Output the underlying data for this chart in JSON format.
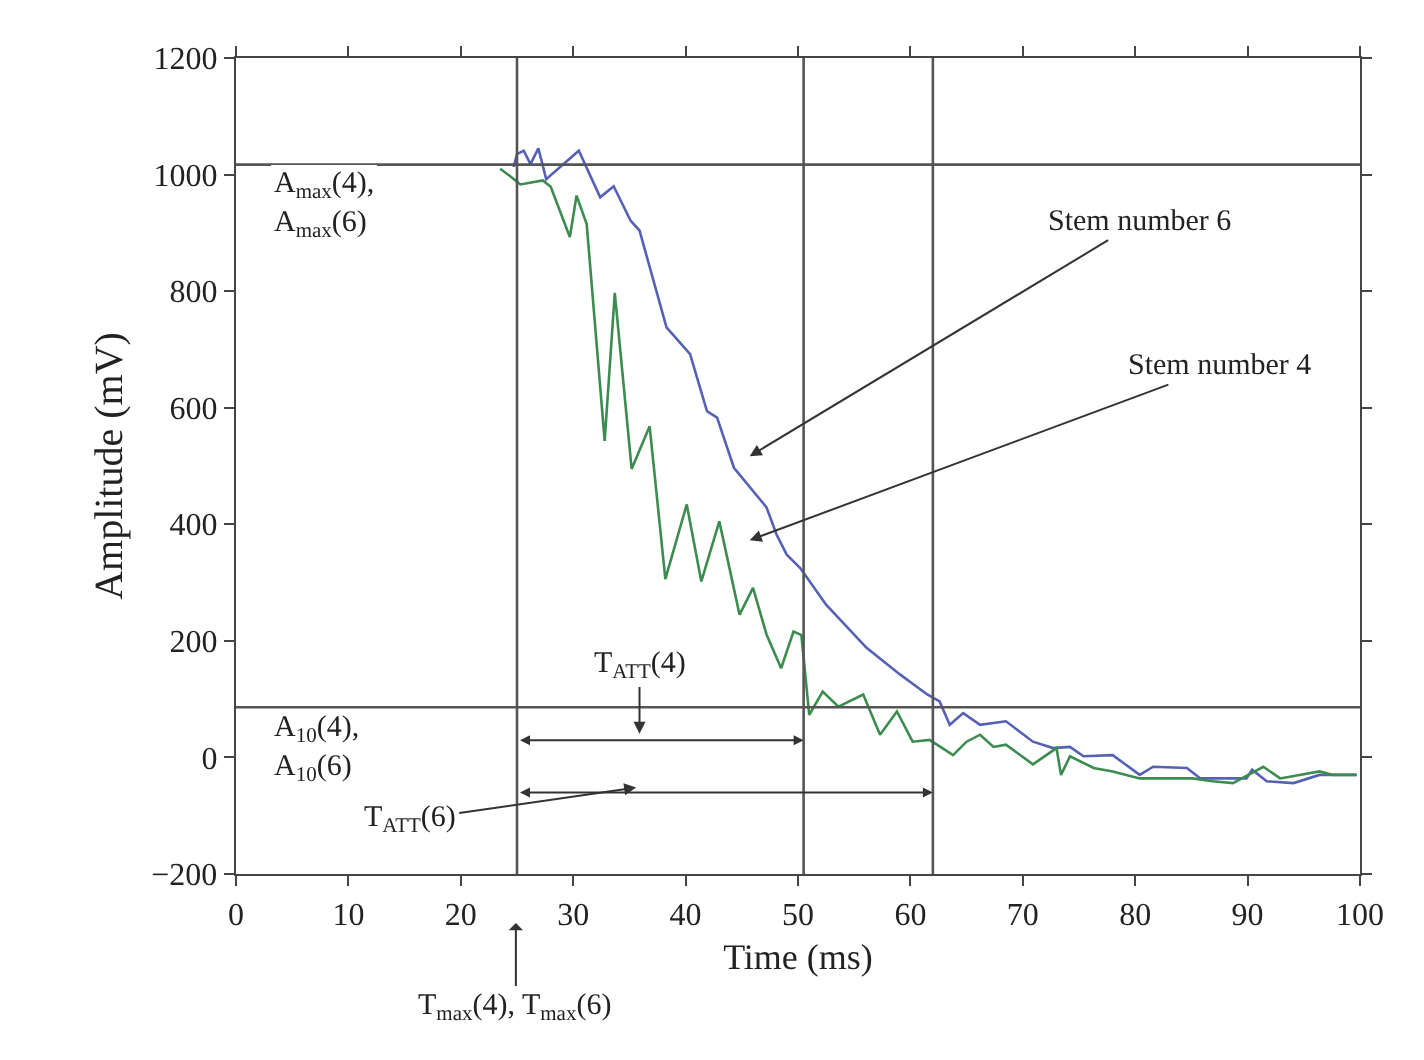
{
  "chart_data": {
    "type": "line",
    "xlabel": "Time (ms)",
    "ylabel": "Amplitude (mV)",
    "xlim": [
      0,
      100
    ],
    "xticks": [
      0,
      10,
      20,
      30,
      40,
      50,
      60,
      70,
      80,
      90,
      100
    ],
    "ylim": [
      -200,
      1200
    ],
    "yticks": [
      -200,
      0,
      200,
      400,
      600,
      800,
      1000,
      1200
    ],
    "marker": "none",
    "line_style": "solid",
    "series": [
      {
        "color": "#5561b5",
        "x": [
          24.7,
          25,
          25.6,
          26.2,
          26.9,
          27.6,
          30.5,
          32.4,
          33.6,
          35.1,
          35.9,
          38.3,
          40.4,
          41.9,
          42.8,
          44.3,
          47.2,
          48.1,
          49,
          50.2,
          52.5,
          56.1,
          59.1,
          61.5,
          62.6,
          63.5,
          64.7,
          66.2,
          68.5,
          70.9,
          72.7,
          74.2,
          75.4,
          78,
          80.4,
          81.6,
          84.6,
          85.8,
          89.9,
          90.4,
          91.7,
          94.1,
          96.4,
          99.7
        ],
        "values": [
          1013,
          1035,
          1041,
          1018,
          1045,
          992,
          1041,
          961,
          980,
          921,
          904,
          738,
          692,
          594,
          583,
          497,
          429,
          382,
          348,
          325,
          262,
          188,
          142,
          108,
          96,
          56,
          76,
          56,
          62,
          27,
          16,
          18,
          2,
          4,
          -30,
          -16,
          -18,
          -36,
          -36,
          -21,
          -41,
          -44,
          -30,
          -30
        ]
      },
      {
        "color": "#3d8c4f",
        "x": [
          23.5,
          24.4,
          25.3,
          27.3,
          28,
          29.7,
          30.3,
          31.2,
          32.8,
          33.7,
          35.2,
          36.8,
          38.2,
          40.1,
          41.4,
          43,
          44.8,
          46,
          47.2,
          48.5,
          49.6,
          50.3,
          51,
          52.2,
          53.6,
          55.8,
          57.3,
          58.8,
          60.2,
          61.7,
          63.8,
          65,
          66.2,
          67.4,
          68.5,
          70.9,
          73,
          73.4,
          74.2,
          76.3,
          78,
          80.4,
          85.1,
          86.9,
          88.7,
          91.4,
          92.9,
          96.4,
          97.6,
          99.7
        ],
        "values": [
          1010,
          997,
          983,
          990,
          979,
          893,
          964,
          915,
          543,
          797,
          495,
          568,
          306,
          434,
          302,
          405,
          245,
          291,
          211,
          153,
          216,
          210,
          73,
          113,
          87,
          108,
          39,
          79,
          27,
          30,
          4,
          27,
          39,
          18,
          22,
          -12,
          16,
          -30,
          2,
          -18,
          -24,
          -36,
          -36,
          -41,
          -44,
          -16,
          -36,
          -24,
          -30,
          -30
        ]
      }
    ],
    "ref_lines": [
      {
        "axis": "x",
        "value": 25,
        "color": "#555555"
      },
      {
        "axis": "x",
        "value": 50.5,
        "color": "#555555"
      },
      {
        "axis": "x",
        "value": 62,
        "color": "#555555"
      },
      {
        "axis": "y",
        "value": 1017,
        "label": "A$_{max}$(4),\nA$_{max}$(6)",
        "color": "#555555"
      },
      {
        "axis": "y",
        "value": 86,
        "label": "A$_{10}$(4),\nA$_{10}$(6)",
        "color": "#555555"
      }
    ],
    "annotations": [
      "Stem number 6",
      "Stem number 4",
      "T$_{ATT}$(4)",
      "T$_{ATT}$(6)",
      "T$_{max}$(4), T$_{max}$(6)"
    ]
  }
}
